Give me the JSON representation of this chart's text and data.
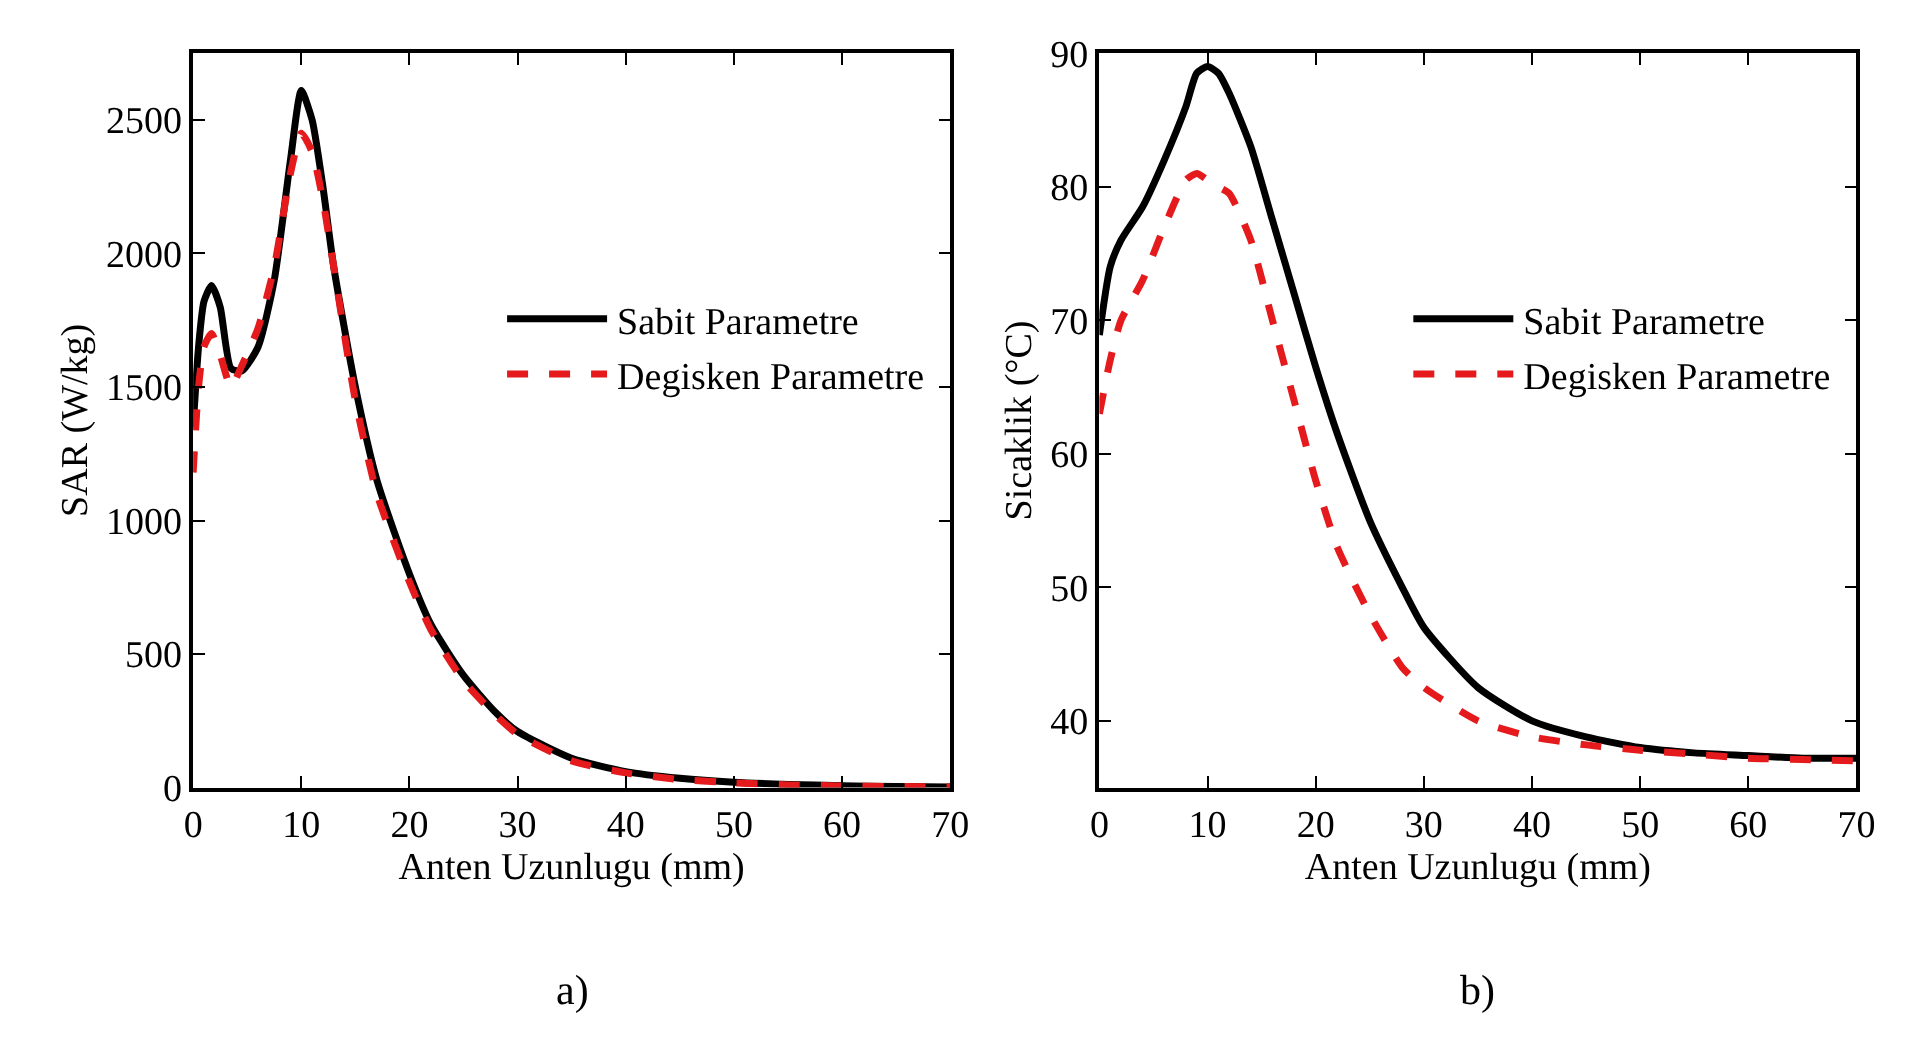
{
  "chart_data": [
    {
      "type": "line",
      "xlabel": "Anten Uzunlugu (mm)",
      "ylabel": "SAR (W/kg)",
      "annotations": [
        "a)"
      ],
      "xlim": [
        0,
        70
      ],
      "xticks": [
        0,
        10,
        20,
        30,
        40,
        50,
        60,
        70
      ],
      "ylim": [
        0,
        2750
      ],
      "yticks": [
        0,
        500,
        1000,
        1500,
        2000,
        2500
      ],
      "legend": "right",
      "x": [
        0,
        0.5,
        1,
        1.7,
        2.5,
        3.5,
        4.5,
        6,
        7.5,
        9,
        10,
        11,
        12,
        13,
        15,
        17,
        20,
        22,
        25,
        28,
        30,
        35,
        40,
        45,
        50,
        55,
        60,
        65,
        70
      ],
      "series": [
        {
          "name": "Sabit Parametre",
          "color": "#000000",
          "line_style": "solid",
          "values": [
            1350,
            1650,
            1820,
            1880,
            1800,
            1570,
            1560,
            1650,
            1900,
            2350,
            2610,
            2500,
            2250,
            1950,
            1500,
            1150,
            800,
            610,
            420,
            280,
            210,
            110,
            60,
            35,
            20,
            12,
            7,
            4,
            2
          ]
        },
        {
          "name": "Degisken Parametre",
          "color": "#e41a1c",
          "line_style": "dashed",
          "values": [
            1180,
            1500,
            1650,
            1700,
            1620,
            1500,
            1580,
            1720,
            1950,
            2300,
            2450,
            2380,
            2200,
            1950,
            1450,
            1100,
            770,
            590,
            400,
            270,
            200,
            100,
            55,
            30,
            18,
            10,
            6,
            4,
            3
          ]
        }
      ]
    },
    {
      "type": "line",
      "xlabel": "Anten Uzunlugu (mm)",
      "ylabel": "Sicaklik (°C)",
      "annotations": [
        "b)"
      ],
      "xlim": [
        0,
        70
      ],
      "xticks": [
        0,
        10,
        20,
        30,
        40,
        50,
        60,
        70
      ],
      "ylim": [
        35,
        90
      ],
      "yticks": [
        40,
        50,
        60,
        70,
        80,
        90
      ],
      "legend": "right",
      "x": [
        0,
        1,
        2,
        4,
        6,
        8,
        9,
        10,
        11,
        12,
        14,
        16,
        18,
        20,
        22,
        25,
        28,
        30,
        35,
        40,
        45,
        50,
        55,
        60,
        65,
        70
      ],
      "series": [
        {
          "name": "Sabit Parametre",
          "color": "#000000",
          "line_style": "solid",
          "values": [
            68.9,
            74,
            76,
            78.5,
            82,
            86,
            88.5,
            89,
            88.5,
            87,
            83,
            77.5,
            72,
            66.5,
            61.5,
            55,
            50,
            47,
            42.5,
            40,
            38.8,
            38,
            37.6,
            37.4,
            37.2,
            37.2
          ]
        },
        {
          "name": "Degisken Parametre",
          "color": "#e41a1c",
          "line_style": "dashed",
          "values": [
            63,
            67,
            70,
            73,
            77,
            80.5,
            81,
            80.5,
            80,
            79.5,
            76,
            70,
            64,
            58,
            53,
            48,
            44,
            42.5,
            40,
            38.8,
            38.2,
            37.8,
            37.5,
            37.2,
            37.1,
            37
          ]
        }
      ]
    }
  ]
}
